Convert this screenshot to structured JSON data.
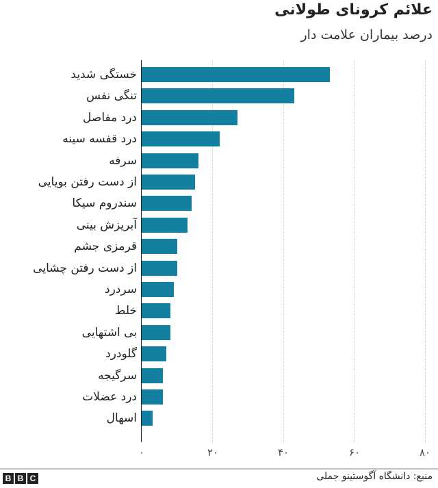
{
  "header": {
    "title": "علائم کرونای طولانی",
    "subtitle": "درصد بیماران علامت دار"
  },
  "axis": {
    "ticks": [
      "۰",
      "۲۰",
      "۴۰",
      "۶۰",
      "۸۰"
    ]
  },
  "footer": {
    "logo": [
      "B",
      "B",
      "C"
    ],
    "source": "منبع: دانشگاه آگوستینو جملی"
  },
  "colors": {
    "bar": "#1380A1",
    "axis": "#222222",
    "grid": "#d6d6d6"
  },
  "chart_data": {
    "type": "bar",
    "orientation": "horizontal",
    "title": "علائم کرونای طولانی",
    "subtitle": "درصد بیماران علامت دار",
    "xlabel": "",
    "ylabel": "",
    "xlim": [
      0,
      80
    ],
    "xticks": [
      0,
      20,
      40,
      60,
      80
    ],
    "grid": true,
    "categories": [
      "خستگی شدید",
      "تنگی نفس",
      "درد مفاصل",
      "درد قفسه سینه",
      "سرفه",
      "از دست رفتن بویایی",
      "سندروم سیکا",
      "آبریزش بینی",
      "قرمزی جشم",
      "از دست رفتن چشایی",
      "سردرد",
      "خلط",
      "بی اشتهایی",
      "گلودرد",
      "سرگیجه",
      "درد عضلات",
      "اسهال"
    ],
    "values": [
      53,
      43,
      27,
      22,
      16,
      15,
      14,
      13,
      10,
      10,
      9,
      8,
      8,
      7,
      6,
      6,
      3
    ],
    "source": "منبع: دانشگاه آگوستینو جملی"
  }
}
